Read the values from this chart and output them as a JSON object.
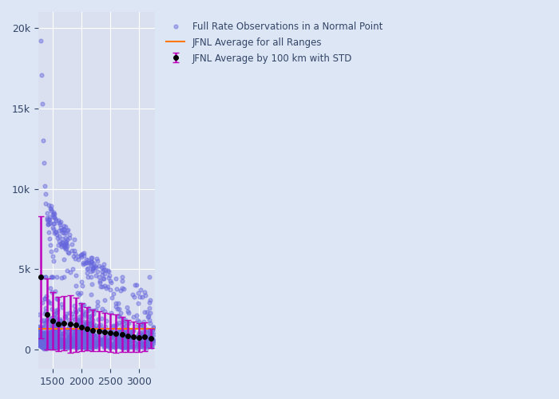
{
  "background_color": "#dce6f5",
  "plot_bg_color": "#dae0ef",
  "scatter_color": "#6666dd",
  "scatter_alpha": 0.45,
  "scatter_size": 12,
  "avg_line_color": "#000000",
  "avg_marker": "o",
  "avg_linewidth": 1.8,
  "errorbar_color": "#bb00bb",
  "hline_color": "#ff7700",
  "hline_value": 1300,
  "hline_linewidth": 1.5,
  "xlim": [
    1250,
    3280
  ],
  "ylim": [
    -1200,
    21000
  ],
  "yticks": [
    0,
    5000,
    10000,
    15000,
    20000
  ],
  "ytick_labels": [
    "0",
    "5k",
    "10k",
    "15k",
    "20k"
  ],
  "xticks": [
    1500,
    2000,
    2500,
    3000
  ],
  "legend_scatter": "Full Rate Observations in a Normal Point",
  "legend_avg": "JFNL Average by 100 km with STD",
  "legend_hline": "JFNL Average for all Ranges",
  "avg_x": [
    1300,
    1400,
    1500,
    1600,
    1700,
    1800,
    1900,
    2000,
    2100,
    2200,
    2300,
    2400,
    2500,
    2600,
    2700,
    2800,
    2900,
    3000,
    3100,
    3200
  ],
  "avg_y": [
    4500,
    2200,
    1800,
    1600,
    1650,
    1600,
    1550,
    1400,
    1300,
    1200,
    1150,
    1100,
    1050,
    1000,
    950,
    850,
    800,
    750,
    800,
    700
  ],
  "avg_std": [
    3800,
    2200,
    1800,
    1700,
    1700,
    1800,
    1700,
    1500,
    1350,
    1300,
    1250,
    1200,
    1200,
    1200,
    1100,
    1000,
    950,
    900,
    900,
    600
  ]
}
